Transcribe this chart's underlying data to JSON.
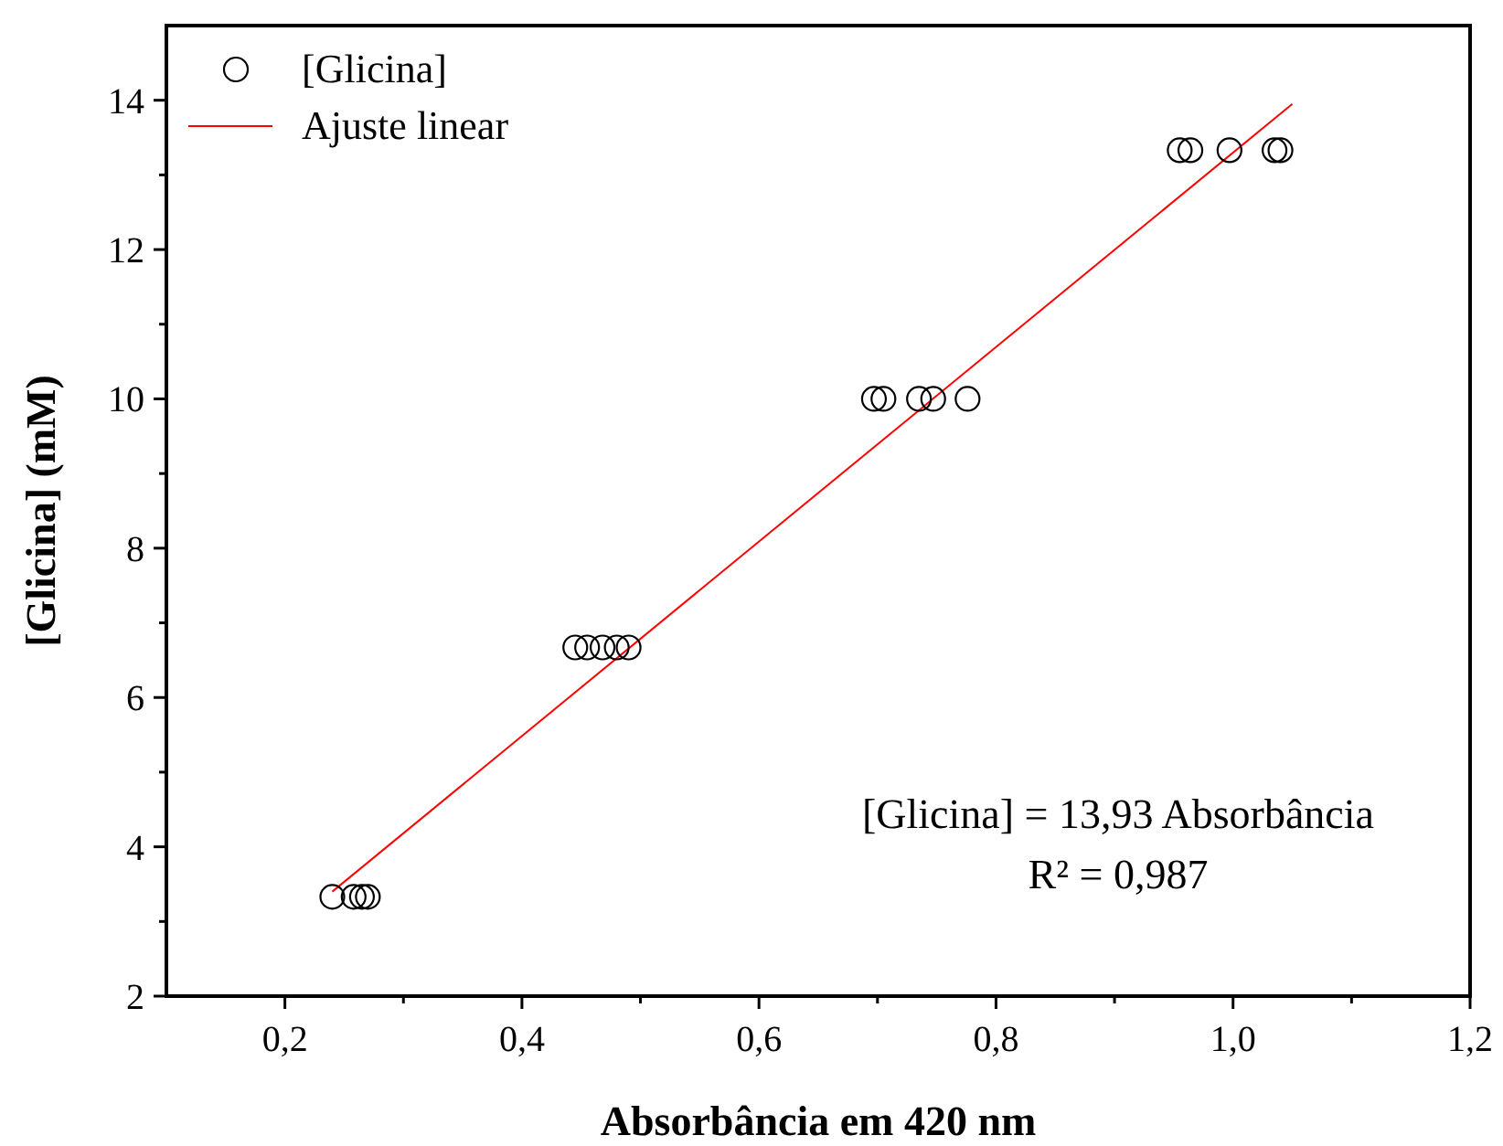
{
  "chart_data": {
    "type": "scatter",
    "xlabel": "Absorbância em 420 nm",
    "ylabel": "[Glicina] (mM)",
    "xlim": [
      0.1,
      1.2
    ],
    "ylim": [
      2,
      15
    ],
    "xticks": [
      {
        "value": 0.2,
        "label": "0,2"
      },
      {
        "value": 0.3,
        "label": null
      },
      {
        "value": 0.4,
        "label": "0,4"
      },
      {
        "value": 0.5,
        "label": null
      },
      {
        "value": 0.6,
        "label": "0,6"
      },
      {
        "value": 0.7,
        "label": null
      },
      {
        "value": 0.8,
        "label": "0,8"
      },
      {
        "value": 0.9,
        "label": null
      },
      {
        "value": 1.0,
        "label": "1,0"
      },
      {
        "value": 1.1,
        "label": null
      },
      {
        "value": 1.2,
        "label": "1,2"
      }
    ],
    "yticks": [
      2,
      {
        "value": 3,
        "label": null
      },
      4,
      {
        "value": 5,
        "label": null
      },
      6,
      {
        "value": 7,
        "label": null
      },
      8,
      {
        "value": 9,
        "label": null
      },
      10,
      {
        "value": 11,
        "label": null
      },
      12,
      {
        "value": 13,
        "label": null
      },
      14
    ],
    "legend": "top left",
    "grid": false,
    "marker": "circle",
    "series": [
      {
        "name": "[Glicina]",
        "color": "#000000",
        "x": [
          0.24,
          0.258,
          0.265,
          0.27,
          0.445,
          0.455,
          0.468,
          0.48,
          0.49,
          0.697,
          0.705,
          0.735,
          0.747,
          0.776,
          0.955,
          0.964,
          0.997,
          1.035,
          1.04
        ],
        "values": [
          3.33,
          3.33,
          3.33,
          3.33,
          6.67,
          6.67,
          6.67,
          6.67,
          6.67,
          10,
          10,
          10,
          10,
          10,
          13.33,
          13.33,
          13.33,
          13.33,
          13.33
        ]
      },
      {
        "name": "Ajuste linear",
        "type": "line",
        "color": "#ff0000",
        "x": [
          0.24,
          1.05
        ],
        "values": [
          3.4,
          13.95
        ],
        "marker": "none",
        "line_style": "solid"
      }
    ],
    "annotations": [
      "[Glicina] = 13,93 Absorbância",
      "R² = 0,987"
    ]
  }
}
